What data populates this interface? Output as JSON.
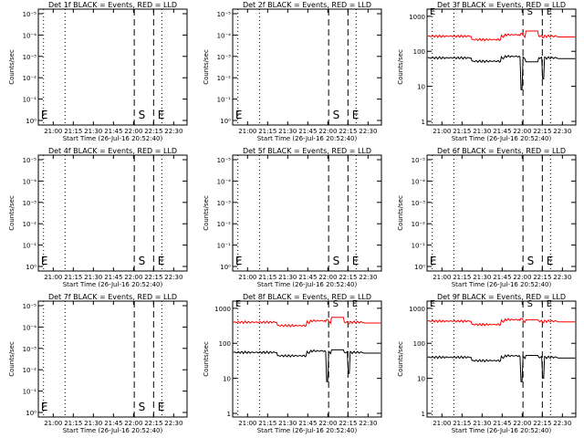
{
  "chart_data": [
    {
      "type": "line",
      "title": "Det 1f BLACK = Events, RED = LLD",
      "xlabel": "Start Time (26-Jul-16 20:52:40)",
      "ylabel": "Counts/sec",
      "x_tick_labels": [
        "21:00",
        "21:15",
        "21:30",
        "21:45",
        "22:00",
        "22:15",
        "22:30"
      ],
      "y_tick_labels": [
        "10⁰",
        "10⁻¹",
        "10⁻²",
        "10⁻³",
        "10⁻⁴",
        "10⁻⁵"
      ],
      "y_scale": "log",
      "empty": true,
      "markers": [
        "E",
        "S",
        "E"
      ],
      "series": []
    },
    {
      "type": "line",
      "title": "Det 2f BLACK = Events, RED = LLD",
      "xlabel": "Start Time (26-Jul-16 20:52:40)",
      "ylabel": "Counts/sec",
      "x_tick_labels": [
        "21:00",
        "21:15",
        "21:30",
        "21:45",
        "22:00",
        "22:15",
        "22:30"
      ],
      "y_tick_labels": [
        "10⁰",
        "10⁻¹",
        "10⁻²",
        "10⁻³",
        "10⁻⁴",
        "10⁻⁵"
      ],
      "y_scale": "log",
      "empty": true,
      "markers": [
        "E",
        "S",
        "E"
      ],
      "series": []
    },
    {
      "type": "line",
      "title": "Det 3f BLACK = Events, RED = LLD",
      "xlabel": "Start Time (26-Jul-16 20:52:40)",
      "ylabel": "Counts/sec",
      "x_tick_labels": [
        "21:00",
        "21:15",
        "21:30",
        "21:45",
        "22:00",
        "22:15",
        "22:30"
      ],
      "y_tick_labels": [
        "1",
        "10",
        "100",
        "1000"
      ],
      "y_scale": "log",
      "empty": false,
      "markers": [
        "E",
        "S",
        "E"
      ],
      "series": [
        {
          "color": "#ff0000",
          "base": 270,
          "bump": 380
        },
        {
          "color": "#000000",
          "base": 65,
          "bump": 50
        }
      ]
    },
    {
      "type": "line",
      "title": "Det 4f BLACK = Events, RED = LLD",
      "xlabel": "Start Time (26-Jul-16 20:52:40)",
      "ylabel": "Counts/sec",
      "x_tick_labels": [
        "21:00",
        "21:15",
        "21:30",
        "21:45",
        "22:00",
        "22:15",
        "22:30"
      ],
      "y_tick_labels": [
        "10⁰",
        "10⁻¹",
        "10⁻²",
        "10⁻³",
        "10⁻⁴",
        "10⁻⁵"
      ],
      "y_scale": "log",
      "empty": true,
      "markers": [
        "E",
        "S",
        "E"
      ],
      "series": []
    },
    {
      "type": "line",
      "title": "Det 5f BLACK = Events, RED = LLD",
      "xlabel": "Start Time (26-Jul-16 20:52:40)",
      "ylabel": "Counts/sec",
      "x_tick_labels": [
        "21:00",
        "21:15",
        "21:30",
        "21:45",
        "22:00",
        "22:15",
        "22:30"
      ],
      "y_tick_labels": [
        "10⁰",
        "10⁻¹",
        "10⁻²",
        "10⁻³",
        "10⁻⁴",
        "10⁻⁵"
      ],
      "y_scale": "log",
      "empty": true,
      "markers": [
        "E",
        "S",
        "E"
      ],
      "series": []
    },
    {
      "type": "line",
      "title": "Det 6f BLACK = Events, RED = LLD",
      "xlabel": "Start Time (26-Jul-16 20:52:40)",
      "ylabel": "Counts/sec",
      "x_tick_labels": [
        "21:00",
        "21:15",
        "21:30",
        "21:45",
        "22:00",
        "22:15",
        "22:30"
      ],
      "y_tick_labels": [
        "10⁰",
        "10⁻¹",
        "10⁻²",
        "10⁻³",
        "10⁻⁴",
        "10⁻⁵"
      ],
      "y_scale": "log",
      "empty": true,
      "markers": [
        "E",
        "S",
        "E"
      ],
      "series": []
    },
    {
      "type": "line",
      "title": "Det 7f BLACK = Events, RED = LLD",
      "xlabel": "Start Time (26-Jul-16 20:52:40)",
      "ylabel": "Counts/sec",
      "x_tick_labels": [
        "21:00",
        "21:15",
        "21:30",
        "21:45",
        "22:00",
        "22:15",
        "22:30"
      ],
      "y_tick_labels": [
        "10⁰",
        "10⁻¹",
        "10⁻²",
        "10⁻³",
        "10⁻⁴",
        "10⁻⁵"
      ],
      "y_scale": "log",
      "empty": true,
      "markers": [
        "E",
        "S",
        "E"
      ],
      "series": []
    },
    {
      "type": "line",
      "title": "Det 8f BLACK = Events, RED = LLD",
      "xlabel": "Start Time (26-Jul-16 20:52:40)",
      "ylabel": "Counts/sec",
      "x_tick_labels": [
        "21:00",
        "21:15",
        "21:30",
        "21:45",
        "22:00",
        "22:15",
        "22:30"
      ],
      "y_tick_labels": [
        "1",
        "10",
        "100",
        "1000"
      ],
      "y_scale": "log",
      "empty": false,
      "markers": [
        "E",
        "S",
        "E"
      ],
      "series": [
        {
          "color": "#ff0000",
          "base": 400,
          "bump": 550
        },
        {
          "color": "#000000",
          "base": 55,
          "bump": 65
        }
      ]
    },
    {
      "type": "line",
      "title": "Det 9f BLACK = Events, RED = LLD",
      "xlabel": "Start Time (26-Jul-16 20:52:40)",
      "ylabel": "Counts/sec",
      "x_tick_labels": [
        "21:00",
        "21:15",
        "21:30",
        "21:45",
        "22:00",
        "22:15",
        "22:30"
      ],
      "y_tick_labels": [
        "1",
        "10",
        "100",
        "1000"
      ],
      "y_scale": "log",
      "empty": false,
      "markers": [
        "E",
        "S",
        "E"
      ],
      "series": [
        {
          "color": "#ff0000",
          "base": 430,
          "bump": 470
        },
        {
          "color": "#000000",
          "base": 40,
          "bump": 45
        }
      ]
    }
  ]
}
